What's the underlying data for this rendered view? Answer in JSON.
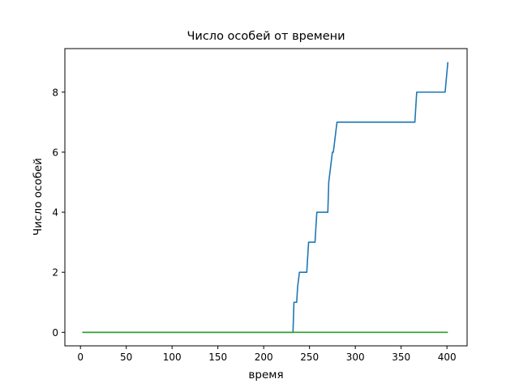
{
  "chart_data": {
    "type": "line",
    "title": "Число особей от времени",
    "xlabel": "время",
    "ylabel": "Число особей",
    "xlim": [
      -17,
      422
    ],
    "ylim": [
      -0.45,
      9.45
    ],
    "xticks": [
      0,
      50,
      100,
      150,
      200,
      250,
      300,
      350,
      400
    ],
    "xtick_labels": [
      "0",
      "50",
      "100",
      "150",
      "200",
      "250",
      "300",
      "350",
      "400"
    ],
    "yticks": [
      0,
      2,
      4,
      6,
      8
    ],
    "ytick_labels": [
      "0",
      "2",
      "4",
      "6",
      "8"
    ],
    "grid": false,
    "series": [
      {
        "color": "#1f77b4",
        "x": [
          2,
          232,
          233,
          236,
          237,
          239,
          240,
          247,
          249,
          256,
          258,
          262,
          263,
          270,
          271,
          275,
          276,
          278,
          280,
          281,
          365,
          367,
          398,
          401
        ],
        "y": [
          0,
          0,
          1,
          1,
          1.5,
          2,
          2,
          2,
          3,
          3,
          4,
          4,
          4,
          4,
          5,
          6,
          6,
          6.5,
          7,
          7,
          7,
          8,
          8,
          9
        ]
      },
      {
        "color": "#2ca02c",
        "x": [
          2,
          401
        ],
        "y": [
          0,
          0
        ]
      }
    ]
  }
}
